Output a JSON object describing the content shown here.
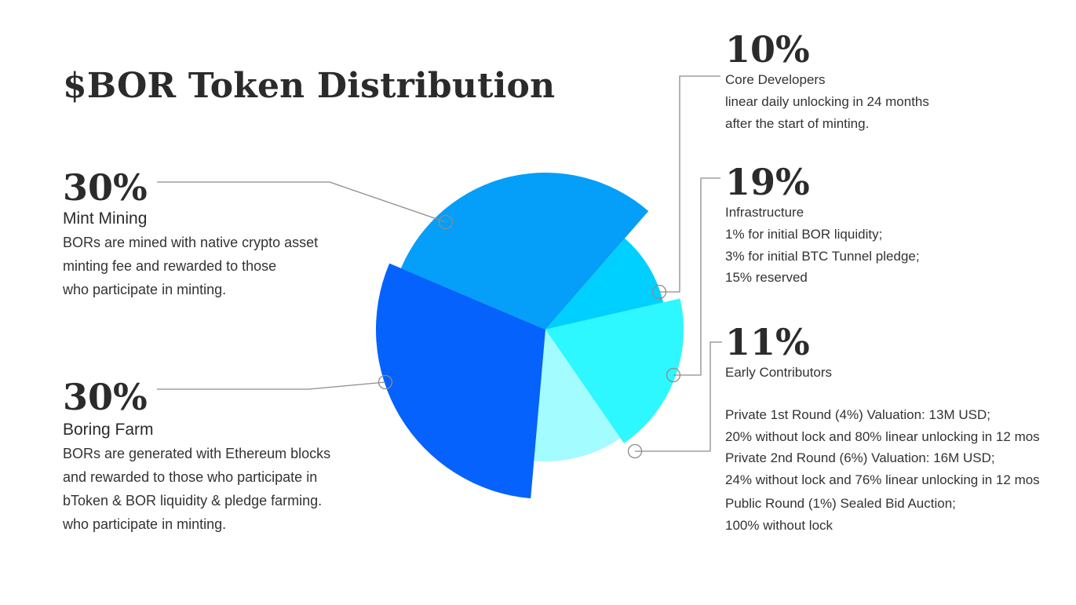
{
  "chart_data": {
    "type": "pie",
    "title": "$BOR Token Distribution",
    "slices": [
      {
        "label": "Mint Mining",
        "value": 30,
        "percent_label": "30%",
        "color": "#059ef8",
        "description": [
          "BORs are mined with native crypto asset",
          "minting fee and rewarded to  those",
          "who participate in minting."
        ]
      },
      {
        "label": "Core Developers",
        "value": 10,
        "percent_label": "10%",
        "color": "#00d0ff",
        "description": [
          "linear daily unlocking in 24 months",
          "after the start of minting."
        ]
      },
      {
        "label": "Infrastructure",
        "value": 19,
        "percent_label": "19%",
        "color": "#2df7ff",
        "description": [
          "1% for initial BOR liquidity;",
          "3% for initial BTC Tunnel pledge;",
          "15% reserved"
        ]
      },
      {
        "label": "Early Contributors",
        "value": 11,
        "percent_label": "11%",
        "color": "#a3fcff",
        "description": [
          "Private 1st Round (4%) Valuation: 13M USD;",
          "20% without lock and 80% linear unlocking in 12 mos",
          "Private 2nd Round (6%) Valuation: 16M USD;",
          "24% without lock and 76% linear unlocking in 12 mos",
          "Public Round (1%) Sealed Bid Auction;",
          "100% without lock"
        ]
      },
      {
        "label": "Boring Farm",
        "value": 30,
        "percent_label": "30%",
        "color": "#0562fc",
        "description": [
          "BORs are generated with Ethereum blocks",
          "and rewarded to those who participate in",
          "bToken & BOR liquidity  & pledge farming.",
          "who participate in minting."
        ]
      }
    ],
    "legend": "callouts"
  }
}
